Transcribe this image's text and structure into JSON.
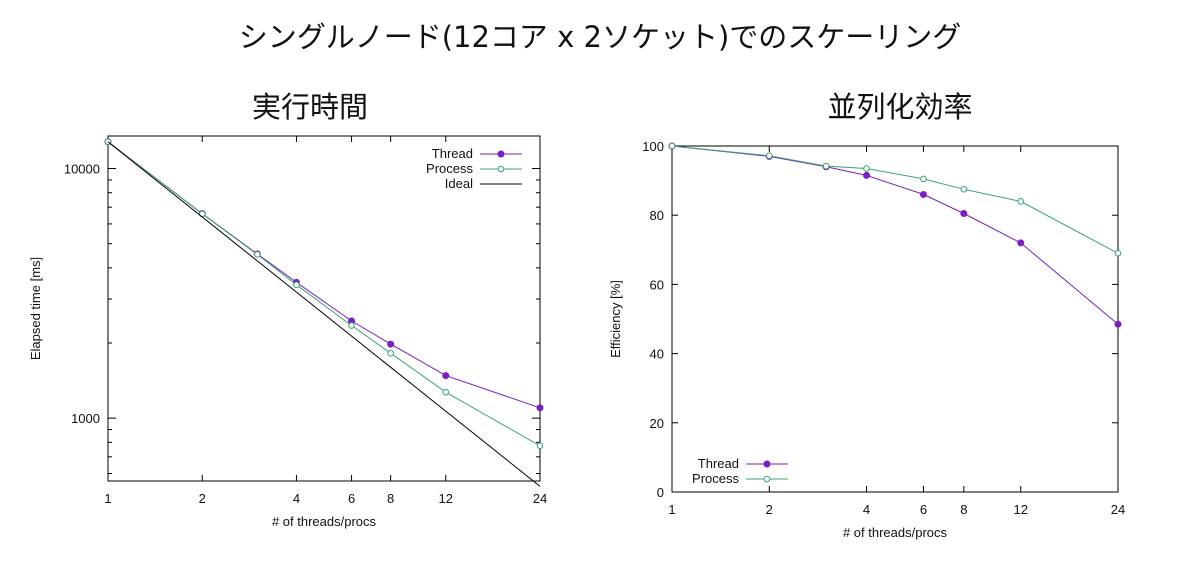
{
  "title": "シングルノード(12コア x 2ソケット)でのスケーリング",
  "colors": {
    "thread": "#7b1fc4",
    "process": "#3aa37a",
    "ideal": "#000000"
  },
  "chart_data": [
    {
      "type": "line",
      "title": "実行時間",
      "xlabel": "# of threads/procs",
      "ylabel": "Elapsed time [ms]",
      "xscale": "log",
      "yscale": "log",
      "xlim": [
        1,
        24
      ],
      "ylim": [
        560,
        13500
      ],
      "xticks": [
        1,
        2,
        4,
        6,
        8,
        12,
        24
      ],
      "yticks": [
        1000,
        10000
      ],
      "legend_position": "top-right",
      "series": [
        {
          "name": "Thread",
          "color": "#7b1fc4",
          "marker": "filled-circle",
          "x": [
            1,
            2,
            3,
            4,
            6,
            8,
            12,
            24
          ],
          "y": [
            12800,
            6600,
            4550,
            3500,
            2450,
            1980,
            1480,
            1100
          ]
        },
        {
          "name": "Process",
          "color": "#3aa37a",
          "marker": "open-circle",
          "x": [
            1,
            2,
            3,
            4,
            6,
            8,
            12,
            24
          ],
          "y": [
            12800,
            6580,
            4530,
            3420,
            2350,
            1820,
            1270,
            775
          ]
        },
        {
          "name": "Ideal",
          "color": "#000000",
          "marker": "none",
          "x": [
            1,
            24
          ],
          "y": [
            12800,
            533
          ]
        }
      ]
    },
    {
      "type": "line",
      "title": "並列化効率",
      "xlabel": "# of threads/procs",
      "ylabel": "Efficiency [%]",
      "xscale": "log",
      "yscale": "linear",
      "xlim": [
        1,
        24
      ],
      "ylim": [
        0,
        100
      ],
      "xticks": [
        1,
        2,
        4,
        6,
        8,
        12,
        24
      ],
      "yticks": [
        0,
        20,
        40,
        60,
        80,
        100
      ],
      "legend_position": "bottom-left",
      "series": [
        {
          "name": "Thread",
          "color": "#7b1fc4",
          "marker": "filled-circle",
          "x": [
            1,
            2,
            3,
            4,
            6,
            8,
            12,
            24
          ],
          "y": [
            100,
            97,
            94,
            91.5,
            86,
            80.5,
            72,
            48.5
          ]
        },
        {
          "name": "Process",
          "color": "#3aa37a",
          "marker": "open-circle",
          "x": [
            1,
            2,
            3,
            4,
            6,
            8,
            12,
            24
          ],
          "y": [
            100,
            97.2,
            94.2,
            93.5,
            90.5,
            87.5,
            84,
            69
          ]
        }
      ]
    }
  ]
}
